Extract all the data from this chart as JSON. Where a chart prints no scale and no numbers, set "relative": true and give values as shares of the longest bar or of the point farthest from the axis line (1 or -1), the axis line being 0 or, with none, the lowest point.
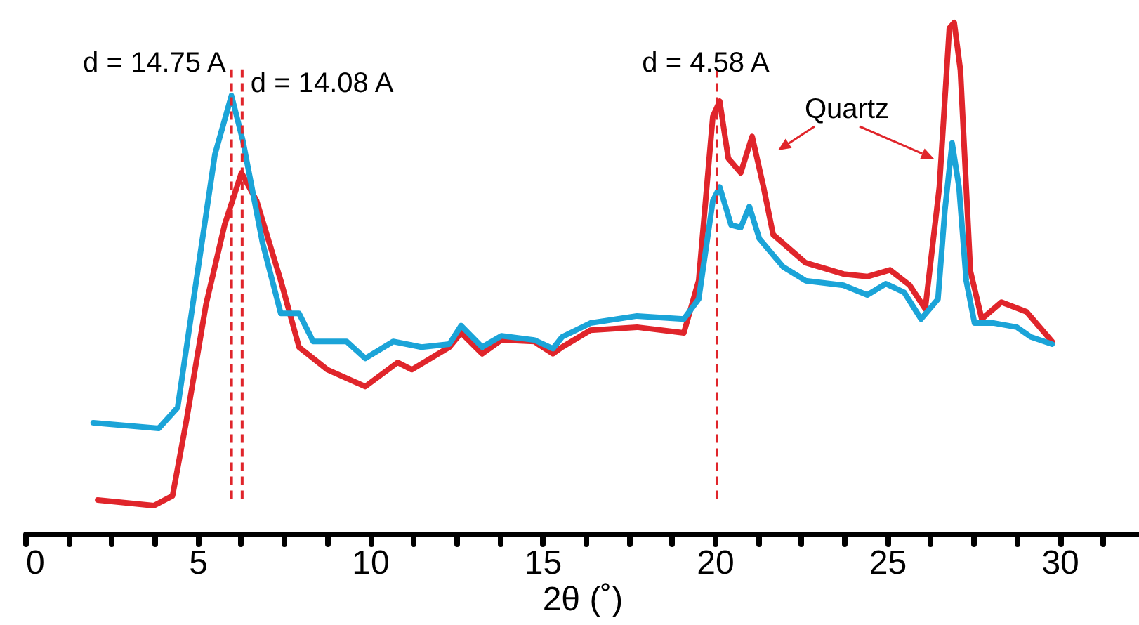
{
  "chart_data": {
    "type": "line",
    "relative": true,
    "xlabel": "2θ (˚)",
    "xlim": [
      0,
      32.3
    ],
    "xticks": [
      0,
      {
        "value": 1.25,
        "label": null
      },
      {
        "value": 2.5,
        "label": null
      },
      {
        "value": 3.75,
        "label": null
      },
      5,
      {
        "value": 6.25,
        "label": null
      },
      {
        "value": 7.5,
        "label": null
      },
      {
        "value": 8.75,
        "label": null
      },
      10,
      {
        "value": 11.25,
        "label": null
      },
      {
        "value": 12.5,
        "label": null
      },
      {
        "value": 13.75,
        "label": null
      },
      15,
      {
        "value": 16.25,
        "label": null
      },
      {
        "value": 17.5,
        "label": null
      },
      {
        "value": 18.75,
        "label": null
      },
      20,
      {
        "value": 21.25,
        "label": null
      },
      {
        "value": 22.5,
        "label": null
      },
      {
        "value": 23.75,
        "label": null
      },
      25,
      {
        "value": 26.25,
        "label": null
      },
      {
        "value": 27.5,
        "label": null
      },
      {
        "value": 28.75,
        "label": null
      },
      30,
      {
        "value": 31.25,
        "label": null
      }
    ],
    "grid": false,
    "marker": "none",
    "line_style": "solid",
    "series": [
      {
        "color": "#e0252b",
        "x": [
          2.1,
          3.73,
          4.27,
          4.67,
          5.24,
          5.78,
          6.27,
          6.71,
          7.41,
          7.94,
          8.76,
          9.86,
          10.8,
          11.21,
          12.3,
          12.64,
          13.25,
          13.81,
          14.76,
          15.3,
          15.57,
          16.39,
          17.74,
          19.1,
          19.53,
          19.94,
          20.14,
          20.39,
          20.75,
          21.08,
          21.41,
          21.69,
          22.63,
          23.73,
          24.42,
          25.08,
          25.65,
          26.1,
          26.51,
          26.8,
          26.94,
          27.12,
          27.41,
          27.74,
          28.31,
          29.04,
          29.78
        ],
        "values": [
          0.066,
          0.055,
          0.074,
          0.22,
          0.448,
          0.604,
          0.706,
          0.651,
          0.495,
          0.365,
          0.321,
          0.288,
          0.335,
          0.321,
          0.365,
          0.393,
          0.352,
          0.379,
          0.376,
          0.352,
          0.365,
          0.398,
          0.404,
          0.393,
          0.495,
          0.816,
          0.846,
          0.734,
          0.706,
          0.777,
          0.678,
          0.585,
          0.53,
          0.508,
          0.503,
          0.516,
          0.486,
          0.44,
          0.678,
          0.989,
          1.0,
          0.907,
          0.514,
          0.42,
          0.453,
          0.434,
          0.376
        ]
      },
      {
        "color": "#1ba4d8",
        "x": [
          1.97,
          3.87,
          4.42,
          4.96,
          5.5,
          5.98,
          6.31,
          6.88,
          7.41,
          7.94,
          8.35,
          9.32,
          9.86,
          10.67,
          11.49,
          12.3,
          12.64,
          13.25,
          13.81,
          14.76,
          15.3,
          15.57,
          16.39,
          17.74,
          19.1,
          19.53,
          19.94,
          20.14,
          20.47,
          20.75,
          21.0,
          21.29,
          21.98,
          22.63,
          23.73,
          24.42,
          24.96,
          25.49,
          25.98,
          26.47,
          26.67,
          26.88,
          27.08,
          27.29,
          27.53,
          28.1,
          28.76,
          29.16,
          29.78
        ],
        "values": [
          0.217,
          0.206,
          0.247,
          0.495,
          0.742,
          0.857,
          0.769,
          0.569,
          0.431,
          0.431,
          0.376,
          0.376,
          0.343,
          0.376,
          0.365,
          0.371,
          0.407,
          0.365,
          0.387,
          0.379,
          0.362,
          0.385,
          0.412,
          0.426,
          0.42,
          0.459,
          0.651,
          0.678,
          0.604,
          0.599,
          0.64,
          0.577,
          0.522,
          0.495,
          0.486,
          0.467,
          0.489,
          0.472,
          0.42,
          0.459,
          0.632,
          0.764,
          0.678,
          0.495,
          0.412,
          0.412,
          0.404,
          0.385,
          0.371
        ]
      }
    ],
    "ref_lines": [
      {
        "axis": "x",
        "value": 5.98,
        "color": "#e0252b",
        "line_style": "dashed"
      },
      {
        "axis": "x",
        "value": 6.29,
        "color": "#e0252b",
        "line_style": "dashed"
      },
      {
        "axis": "x",
        "value": 20.06,
        "color": "#e0252b",
        "line_style": "dashed"
      }
    ],
    "annotations": [
      {
        "text": "d = 14.75 A",
        "x": 5.98,
        "y": 0.92
      },
      {
        "text": "d = 14.08 A",
        "x": 6.29,
        "y": 0.88
      },
      {
        "text": "d = 4.58 A",
        "x": 20.06,
        "y": 0.92
      },
      "Quartz"
    ]
  }
}
